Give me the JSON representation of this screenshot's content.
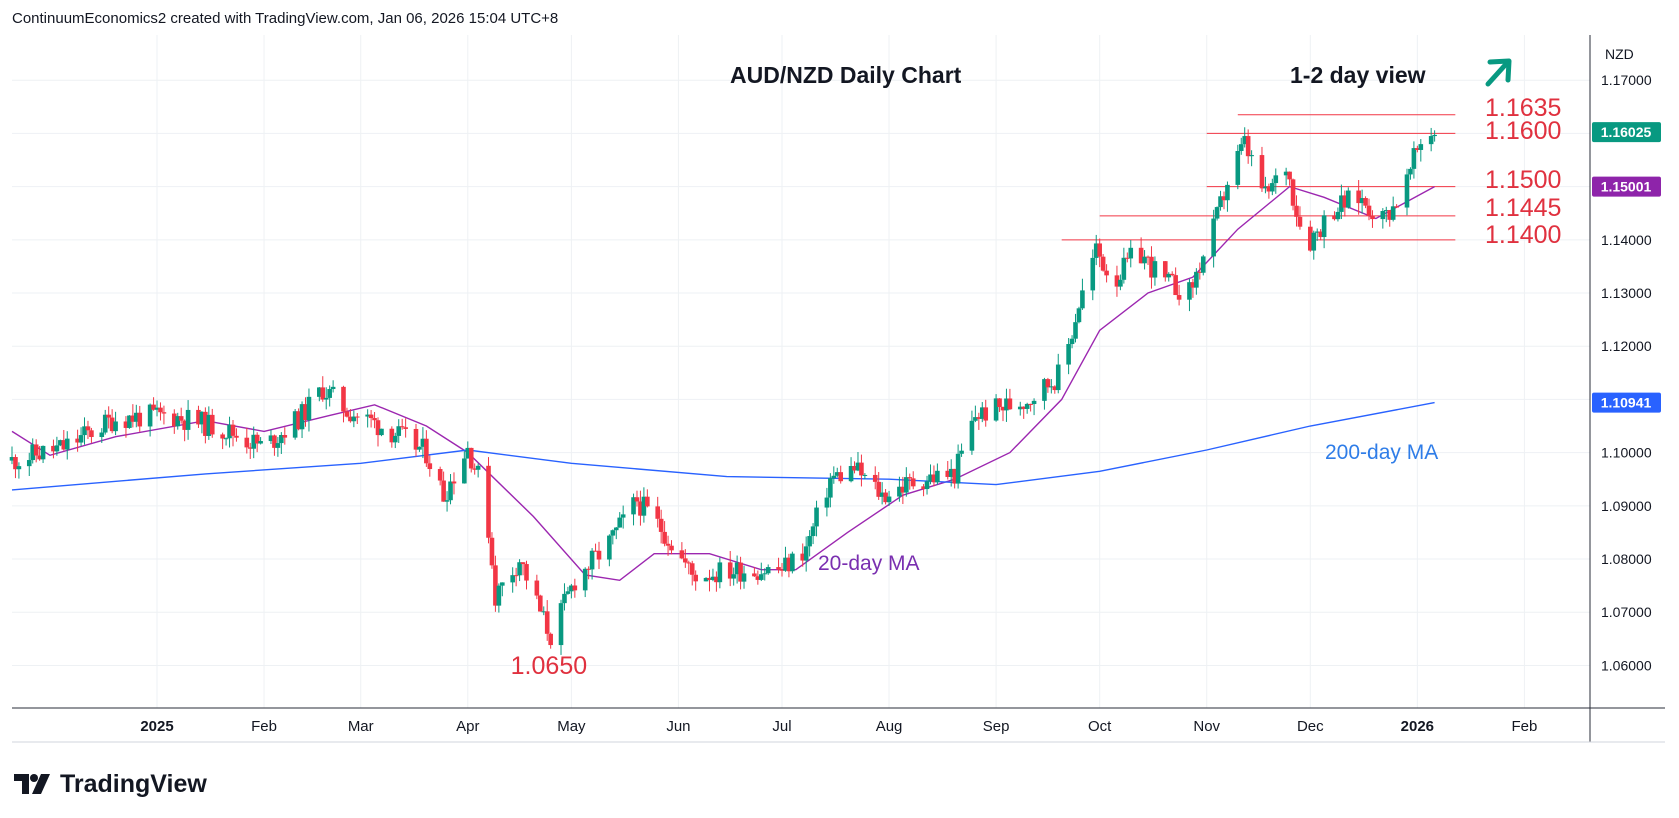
{
  "header": {
    "attribution": "ContinuumEconomics2 created with TradingView.com, Jan 06, 2026 15:04 UTC+8"
  },
  "footer": {
    "brand": "TradingView"
  },
  "colors": {
    "up": "#089981",
    "down": "#f23645",
    "ma20": "#9c27b0",
    "ma200": "#2962ff",
    "levels": "#f23645",
    "last_badge": "#089981",
    "ma_badge": "#8e24aa",
    "ma200_badge": "#2962ff",
    "grid": "#eef1f4"
  },
  "chart_data": {
    "type": "candlestick",
    "title": "AUD/NZD Daily Chart",
    "subtitle": "1-2 day view",
    "bias_icon": "arrow-up-right-icon",
    "y_unit": "NZD",
    "ylim": [
      1.052,
      1.1785
    ],
    "y_ticks": [
      1.06,
      1.07,
      1.08,
      1.09,
      1.1,
      1.11,
      1.12,
      1.13,
      1.14,
      1.15,
      1.16,
      1.17
    ],
    "y_tick_labels": [
      "1.06000",
      "1.07000",
      "1.08000",
      "1.09000",
      "1.10000",
      "1.11000",
      "1.12000",
      "1.13000",
      "1.14000",
      "1.15000",
      "1.16000",
      "1.17000"
    ],
    "x_ticks": [
      {
        "label": "2025",
        "date": "2025-01-01",
        "bold": true
      },
      {
        "label": "Feb",
        "date": "2025-02-01",
        "bold": false
      },
      {
        "label": "Mar",
        "date": "2025-03-01",
        "bold": false
      },
      {
        "label": "Apr",
        "date": "2025-04-01",
        "bold": false
      },
      {
        "label": "May",
        "date": "2025-05-01",
        "bold": false
      },
      {
        "label": "Jun",
        "date": "2025-06-01",
        "bold": false
      },
      {
        "label": "Jul",
        "date": "2025-07-01",
        "bold": false
      },
      {
        "label": "Aug",
        "date": "2025-08-01",
        "bold": false
      },
      {
        "label": "Sep",
        "date": "2025-09-01",
        "bold": false
      },
      {
        "label": "Oct",
        "date": "2025-10-01",
        "bold": false
      },
      {
        "label": "Nov",
        "date": "2025-11-01",
        "bold": false
      },
      {
        "label": "Dec",
        "date": "2025-12-01",
        "bold": false
      },
      {
        "label": "2026",
        "date": "2026-01-01",
        "bold": true
      },
      {
        "label": "Feb",
        "date": "2026-02-01",
        "bold": false
      }
    ],
    "xlim": [
      "2024-11-20",
      "2026-02-20"
    ],
    "close_path": [
      [
        "2024-11-20",
        1.0985
      ],
      [
        "2024-12-05",
        1.101
      ],
      [
        "2024-12-20",
        1.1065
      ],
      [
        "2025-01-05",
        1.107
      ],
      [
        "2025-01-20",
        1.1045
      ],
      [
        "2025-02-01",
        1.101
      ],
      [
        "2025-02-12",
        1.107
      ],
      [
        "2025-02-18",
        1.112
      ],
      [
        "2025-02-25",
        1.108
      ],
      [
        "2025-03-10",
        1.104
      ],
      [
        "2025-03-20",
        1.1
      ],
      [
        "2025-03-25",
        1.092
      ],
      [
        "2025-04-01",
        1.101
      ],
      [
        "2025-04-06",
        1.092
      ],
      [
        "2025-04-09",
        1.073
      ],
      [
        "2025-04-16",
        1.08
      ],
      [
        "2025-04-22",
        1.07
      ],
      [
        "2025-04-25",
        1.0655
      ],
      [
        "2025-05-02",
        1.076
      ],
      [
        "2025-05-12",
        1.083
      ],
      [
        "2025-05-20",
        1.091
      ],
      [
        "2025-05-28",
        1.085
      ],
      [
        "2025-06-05",
        1.077
      ],
      [
        "2025-06-20",
        1.078
      ],
      [
        "2025-07-01",
        1.078
      ],
      [
        "2025-07-08",
        1.082
      ],
      [
        "2025-07-15",
        1.095
      ],
      [
        "2025-07-22",
        1.097
      ],
      [
        "2025-07-30",
        1.092
      ],
      [
        "2025-08-10",
        1.095
      ],
      [
        "2025-08-20",
        1.096
      ],
      [
        "2025-08-26",
        1.107
      ],
      [
        "2025-09-10",
        1.11
      ],
      [
        "2025-09-20",
        1.115
      ],
      [
        "2025-09-25",
        1.128
      ],
      [
        "2025-09-30",
        1.138
      ],
      [
        "2025-10-05",
        1.132
      ],
      [
        "2025-10-12",
        1.138
      ],
      [
        "2025-10-20",
        1.132
      ],
      [
        "2025-10-27",
        1.13
      ],
      [
        "2025-11-03",
        1.142
      ],
      [
        "2025-11-08",
        1.153
      ],
      [
        "2025-11-12",
        1.158
      ],
      [
        "2025-11-18",
        1.148
      ],
      [
        "2025-11-24",
        1.154
      ],
      [
        "2025-11-28",
        1.143
      ],
      [
        "2025-12-01",
        1.14
      ],
      [
        "2025-12-08",
        1.146
      ],
      [
        "2025-12-15",
        1.148
      ],
      [
        "2025-12-22",
        1.144
      ],
      [
        "2025-12-28",
        1.149
      ],
      [
        "2026-01-01",
        1.157
      ],
      [
        "2026-01-04",
        1.161
      ],
      [
        "2026-01-06",
        1.1602
      ]
    ],
    "series": [
      {
        "name": "20-day MA",
        "points": [
          [
            "2024-11-20",
            1.104
          ],
          [
            "2024-12-01",
            1.0995
          ],
          [
            "2024-12-20",
            1.103
          ],
          [
            "2025-01-15",
            1.106
          ],
          [
            "2025-02-01",
            1.104
          ],
          [
            "2025-02-20",
            1.107
          ],
          [
            "2025-03-05",
            1.109
          ],
          [
            "2025-03-20",
            1.105
          ],
          [
            "2025-04-01",
            1.1
          ],
          [
            "2025-04-20",
            1.088
          ],
          [
            "2025-05-05",
            1.077
          ],
          [
            "2025-05-15",
            1.076
          ],
          [
            "2025-05-25",
            1.081
          ],
          [
            "2025-06-10",
            1.081
          ],
          [
            "2025-06-25",
            1.078
          ],
          [
            "2025-07-05",
            1.078
          ],
          [
            "2025-07-20",
            1.085
          ],
          [
            "2025-08-05",
            1.092
          ],
          [
            "2025-08-20",
            1.095
          ],
          [
            "2025-09-05",
            1.1
          ],
          [
            "2025-09-20",
            1.11
          ],
          [
            "2025-10-01",
            1.123
          ],
          [
            "2025-10-15",
            1.13
          ],
          [
            "2025-10-28",
            1.133
          ],
          [
            "2025-11-10",
            1.142
          ],
          [
            "2025-11-25",
            1.15
          ],
          [
            "2025-12-05",
            1.148
          ],
          [
            "2025-12-20",
            1.144
          ],
          [
            "2026-01-06",
            1.15
          ]
        ]
      },
      {
        "name": "200-day MA",
        "points": [
          [
            "2024-11-20",
            1.093
          ],
          [
            "2025-01-15",
            1.096
          ],
          [
            "2025-03-01",
            1.098
          ],
          [
            "2025-04-01",
            1.1005
          ],
          [
            "2025-05-01",
            1.098
          ],
          [
            "2025-06-15",
            1.0955
          ],
          [
            "2025-08-01",
            1.095
          ],
          [
            "2025-09-01",
            1.094
          ],
          [
            "2025-10-01",
            1.0965
          ],
          [
            "2025-11-01",
            1.1005
          ],
          [
            "2025-12-01",
            1.105
          ],
          [
            "2026-01-06",
            1.1094
          ]
        ]
      }
    ],
    "swing_low_points": [
      [
        "2025-04-25",
        1.065
      ]
    ],
    "levels": [
      {
        "label": "1.1635",
        "value": 1.1635,
        "from": "2025-11-10"
      },
      {
        "label": "1.1600",
        "value": 1.16,
        "from": "2025-11-01"
      },
      {
        "label": "1.1500",
        "value": 1.15,
        "from": "2025-11-01"
      },
      {
        "label": "1.1445",
        "value": 1.1445,
        "from": "2025-10-01"
      },
      {
        "label": "1.1400",
        "value": 1.14,
        "from": "2025-09-20"
      }
    ],
    "annotations": {
      "low_label": "1.0650",
      "low_value": 1.065,
      "ma20_label": "20-day MA",
      "ma200_label": "200-day MA"
    },
    "price_badges": [
      {
        "label": "1.16025",
        "value": 1.16025,
        "kind": "last"
      },
      {
        "label": "1.15001",
        "value": 1.15001,
        "kind": "ma20"
      },
      {
        "label": "1.10941",
        "value": 1.10941,
        "kind": "ma200"
      }
    ]
  }
}
